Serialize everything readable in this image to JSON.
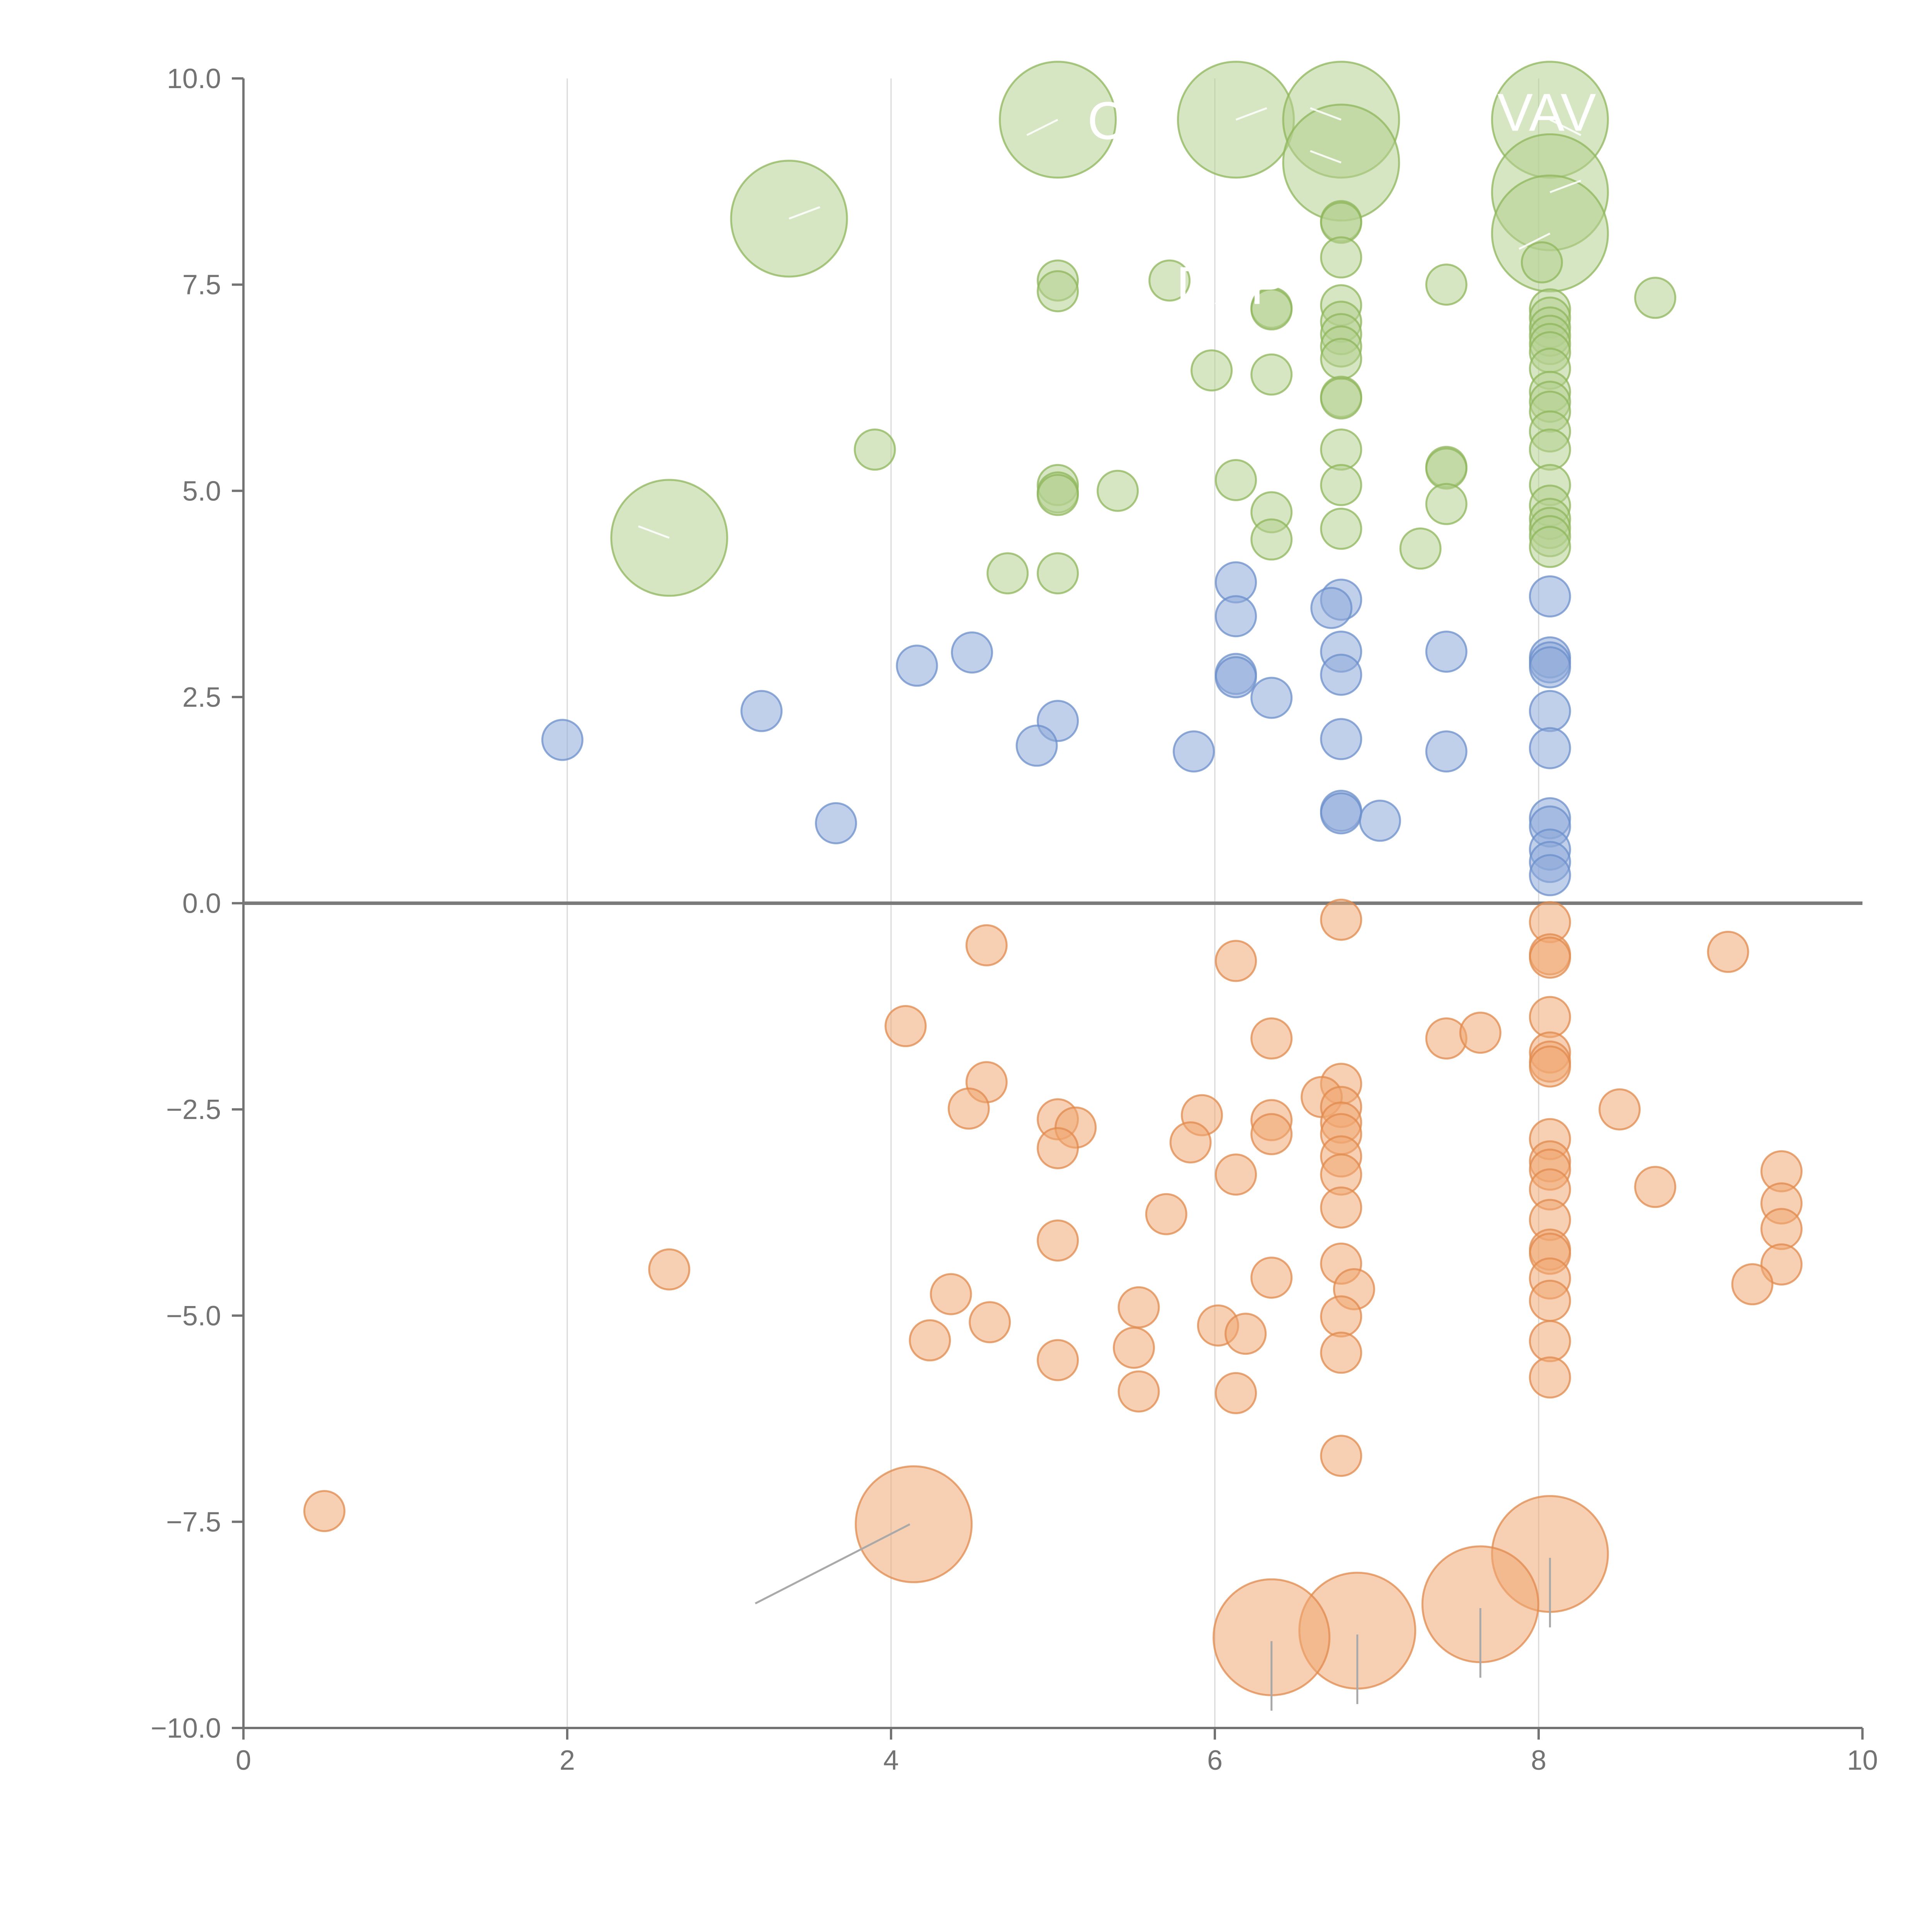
{
  "chart_data": {
    "type": "scatter",
    "title": "",
    "xlabel": "",
    "ylabel": "",
    "xlim": [
      0,
      10
    ],
    "ylim": [
      -10,
      10
    ],
    "x_ticks": [
      "0",
      "2",
      "4",
      "6",
      "8",
      "10"
    ],
    "y_ticks": [
      "10.0",
      "7.5",
      "5.0",
      "2.5",
      "0.0",
      "−2.5",
      "−5.0",
      "−7.5",
      "−10.0"
    ],
    "grid": "vertical",
    "colors": {
      "green_fill": "#b5d08f",
      "green_stroke": "#8db65a",
      "blue_fill": "#8eaad9",
      "blue_stroke": "#6b8fcb",
      "orange_fill": "#f0a872",
      "orange_stroke": "#e0894c"
    },
    "labels": [
      {
        "text": "CR",
        "x": 5.45,
        "y": 9.5
      },
      {
        "text": "VAV",
        "x": 8.05,
        "y": 9.6
      },
      {
        "text": "DAPT",
        "x": 6.2,
        "y": 7.5
      }
    ],
    "series": [
      {
        "name": "green",
        "color_key": "green",
        "points": [
          {
            "x": 5.03,
            "y": 9.5,
            "s": 3
          },
          {
            "x": 6.13,
            "y": 9.5,
            "s": 3
          },
          {
            "x": 6.78,
            "y": 9.5,
            "s": 3
          },
          {
            "x": 8.07,
            "y": 9.5,
            "s": 3
          },
          {
            "x": 6.78,
            "y": 8.98,
            "s": 3
          },
          {
            "x": 8.07,
            "y": 8.62,
            "s": 3
          },
          {
            "x": 8.07,
            "y": 8.12,
            "s": 3
          },
          {
            "x": 3.37,
            "y": 8.3,
            "s": 3
          },
          {
            "x": 2.63,
            "y": 4.43,
            "s": 3
          },
          {
            "x": 6.78,
            "y": 8.27,
            "s": 1
          },
          {
            "x": 6.78,
            "y": 8.25,
            "s": 1
          },
          {
            "x": 6.78,
            "y": 7.83,
            "s": 1
          },
          {
            "x": 8.02,
            "y": 7.77,
            "s": 1
          },
          {
            "x": 5.03,
            "y": 7.55,
            "s": 1
          },
          {
            "x": 5.03,
            "y": 7.42,
            "s": 1
          },
          {
            "x": 5.72,
            "y": 7.55,
            "s": 1
          },
          {
            "x": 7.43,
            "y": 7.5,
            "s": 1
          },
          {
            "x": 8.72,
            "y": 7.34,
            "s": 1
          },
          {
            "x": 6.35,
            "y": 7.22,
            "s": 1
          },
          {
            "x": 6.35,
            "y": 7.2,
            "s": 1
          },
          {
            "x": 6.78,
            "y": 7.25,
            "s": 1
          },
          {
            "x": 6.78,
            "y": 7.05,
            "s": 1
          },
          {
            "x": 6.78,
            "y": 6.9,
            "s": 1
          },
          {
            "x": 6.78,
            "y": 6.75,
            "s": 1
          },
          {
            "x": 6.78,
            "y": 6.6,
            "s": 1
          },
          {
            "x": 8.07,
            "y": 7.2,
            "s": 1
          },
          {
            "x": 8.07,
            "y": 7.1,
            "s": 1
          },
          {
            "x": 8.07,
            "y": 6.98,
            "s": 1
          },
          {
            "x": 8.07,
            "y": 6.88,
            "s": 1
          },
          {
            "x": 8.07,
            "y": 6.78,
            "s": 1
          },
          {
            "x": 8.07,
            "y": 6.68,
            "s": 1
          },
          {
            "x": 5.98,
            "y": 6.46,
            "s": 1
          },
          {
            "x": 6.35,
            "y": 6.41,
            "s": 1
          },
          {
            "x": 8.07,
            "y": 6.48,
            "s": 1
          },
          {
            "x": 6.78,
            "y": 6.14,
            "s": 1
          },
          {
            "x": 6.78,
            "y": 6.12,
            "s": 1
          },
          {
            "x": 8.07,
            "y": 6.2,
            "s": 1
          },
          {
            "x": 8.07,
            "y": 6.08,
            "s": 1
          },
          {
            "x": 8.07,
            "y": 5.96,
            "s": 1
          },
          {
            "x": 8.07,
            "y": 5.72,
            "s": 1
          },
          {
            "x": 8.07,
            "y": 5.5,
            "s": 1
          },
          {
            "x": 3.9,
            "y": 5.5,
            "s": 1
          },
          {
            "x": 6.78,
            "y": 5.5,
            "s": 1
          },
          {
            "x": 7.43,
            "y": 5.29,
            "s": 1
          },
          {
            "x": 7.43,
            "y": 5.27,
            "s": 1
          },
          {
            "x": 6.13,
            "y": 5.13,
            "s": 1
          },
          {
            "x": 6.78,
            "y": 5.07,
            "s": 1
          },
          {
            "x": 8.07,
            "y": 5.07,
            "s": 1
          },
          {
            "x": 5.03,
            "y": 5.07,
            "s": 1
          },
          {
            "x": 5.03,
            "y": 4.98,
            "s": 1
          },
          {
            "x": 5.03,
            "y": 4.95,
            "s": 1
          },
          {
            "x": 5.4,
            "y": 5.0,
            "s": 1
          },
          {
            "x": 7.43,
            "y": 4.84,
            "s": 1
          },
          {
            "x": 8.07,
            "y": 4.82,
            "s": 1
          },
          {
            "x": 6.35,
            "y": 4.74,
            "s": 1
          },
          {
            "x": 8.07,
            "y": 4.66,
            "s": 1
          },
          {
            "x": 8.07,
            "y": 4.55,
            "s": 1
          },
          {
            "x": 8.07,
            "y": 4.45,
            "s": 1
          },
          {
            "x": 6.78,
            "y": 4.54,
            "s": 1
          },
          {
            "x": 6.35,
            "y": 4.41,
            "s": 1
          },
          {
            "x": 8.07,
            "y": 4.32,
            "s": 1
          },
          {
            "x": 7.27,
            "y": 4.3,
            "s": 1
          },
          {
            "x": 4.72,
            "y": 4.0,
            "s": 1
          },
          {
            "x": 5.03,
            "y": 4.0,
            "s": 1
          }
        ]
      },
      {
        "name": "blue",
        "color_key": "blue",
        "points": [
          {
            "x": 6.13,
            "y": 3.89,
            "s": 1
          },
          {
            "x": 6.78,
            "y": 3.68,
            "s": 1
          },
          {
            "x": 8.07,
            "y": 3.72,
            "s": 1
          },
          {
            "x": 6.72,
            "y": 3.58,
            "s": 1
          },
          {
            "x": 6.13,
            "y": 3.48,
            "s": 1
          },
          {
            "x": 4.5,
            "y": 3.04,
            "s": 1
          },
          {
            "x": 6.78,
            "y": 3.05,
            "s": 1
          },
          {
            "x": 7.43,
            "y": 3.05,
            "s": 1
          },
          {
            "x": 8.07,
            "y": 2.98,
            "s": 1
          },
          {
            "x": 8.07,
            "y": 2.92,
            "s": 1
          },
          {
            "x": 8.07,
            "y": 2.86,
            "s": 1
          },
          {
            "x": 4.16,
            "y": 2.88,
            "s": 1
          },
          {
            "x": 6.78,
            "y": 2.77,
            "s": 1
          },
          {
            "x": 6.13,
            "y": 2.78,
            "s": 1
          },
          {
            "x": 6.13,
            "y": 2.74,
            "s": 1
          },
          {
            "x": 6.35,
            "y": 2.49,
            "s": 1
          },
          {
            "x": 3.2,
            "y": 2.33,
            "s": 1
          },
          {
            "x": 8.07,
            "y": 2.33,
            "s": 1
          },
          {
            "x": 5.03,
            "y": 2.21,
            "s": 1
          },
          {
            "x": 1.97,
            "y": 1.98,
            "s": 1
          },
          {
            "x": 6.78,
            "y": 1.99,
            "s": 1
          },
          {
            "x": 4.9,
            "y": 1.91,
            "s": 1
          },
          {
            "x": 5.87,
            "y": 1.84,
            "s": 1
          },
          {
            "x": 7.43,
            "y": 1.84,
            "s": 1
          },
          {
            "x": 8.07,
            "y": 1.88,
            "s": 1
          },
          {
            "x": 6.78,
            "y": 1.12,
            "s": 1
          },
          {
            "x": 6.78,
            "y": 1.09,
            "s": 1
          },
          {
            "x": 8.07,
            "y": 1.03,
            "s": 1
          },
          {
            "x": 8.07,
            "y": 0.93,
            "s": 1
          },
          {
            "x": 7.02,
            "y": 1.0,
            "s": 1
          },
          {
            "x": 3.66,
            "y": 0.97,
            "s": 1
          },
          {
            "x": 8.07,
            "y": 0.65,
            "s": 1
          },
          {
            "x": 8.07,
            "y": 0.5,
            "s": 1
          },
          {
            "x": 8.07,
            "y": 0.34,
            "s": 1
          }
        ]
      },
      {
        "name": "orange",
        "color_key": "orange",
        "points": [
          {
            "x": 6.78,
            "y": -0.2,
            "s": 1
          },
          {
            "x": 8.07,
            "y": -0.23,
            "s": 1
          },
          {
            "x": 4.59,
            "y": -0.51,
            "s": 1
          },
          {
            "x": 9.17,
            "y": -0.59,
            "s": 1
          },
          {
            "x": 8.07,
            "y": -0.62,
            "s": 1
          },
          {
            "x": 8.07,
            "y": -0.66,
            "s": 1
          },
          {
            "x": 6.13,
            "y": -0.7,
            "s": 1
          },
          {
            "x": 4.09,
            "y": -1.49,
            "s": 1
          },
          {
            "x": 8.07,
            "y": -1.38,
            "s": 1
          },
          {
            "x": 6.35,
            "y": -1.64,
            "s": 1
          },
          {
            "x": 7.43,
            "y": -1.64,
            "s": 1
          },
          {
            "x": 7.64,
            "y": -1.57,
            "s": 1
          },
          {
            "x": 8.07,
            "y": -1.81,
            "s": 1
          },
          {
            "x": 8.07,
            "y": -1.92,
            "s": 1
          },
          {
            "x": 8.07,
            "y": -1.98,
            "s": 1
          },
          {
            "x": 4.59,
            "y": -2.17,
            "s": 1
          },
          {
            "x": 6.78,
            "y": -2.19,
            "s": 1
          },
          {
            "x": 6.66,
            "y": -2.35,
            "s": 1
          },
          {
            "x": 4.48,
            "y": -2.49,
            "s": 1
          },
          {
            "x": 6.78,
            "y": -2.47,
            "s": 1
          },
          {
            "x": 8.5,
            "y": -2.5,
            "s": 1
          },
          {
            "x": 5.92,
            "y": -2.57,
            "s": 1
          },
          {
            "x": 5.03,
            "y": -2.62,
            "s": 1
          },
          {
            "x": 6.35,
            "y": -2.63,
            "s": 1
          },
          {
            "x": 6.78,
            "y": -2.66,
            "s": 1
          },
          {
            "x": 5.14,
            "y": -2.72,
            "s": 1
          },
          {
            "x": 6.35,
            "y": -2.8,
            "s": 1
          },
          {
            "x": 6.78,
            "y": -2.8,
            "s": 1
          },
          {
            "x": 8.07,
            "y": -2.86,
            "s": 1
          },
          {
            "x": 5.85,
            "y": -2.9,
            "s": 1
          },
          {
            "x": 5.03,
            "y": -2.97,
            "s": 1
          },
          {
            "x": 6.78,
            "y": -3.07,
            "s": 1
          },
          {
            "x": 8.07,
            "y": -3.13,
            "s": 1
          },
          {
            "x": 8.07,
            "y": -3.23,
            "s": 1
          },
          {
            "x": 9.5,
            "y": -3.25,
            "s": 1
          },
          {
            "x": 6.13,
            "y": -3.29,
            "s": 1
          },
          {
            "x": 6.78,
            "y": -3.29,
            "s": 1
          },
          {
            "x": 8.72,
            "y": -3.44,
            "s": 1
          },
          {
            "x": 8.07,
            "y": -3.47,
            "s": 1
          },
          {
            "x": 9.5,
            "y": -3.64,
            "s": 1
          },
          {
            "x": 6.78,
            "y": -3.69,
            "s": 1
          },
          {
            "x": 5.7,
            "y": -3.77,
            "s": 1
          },
          {
            "x": 8.07,
            "y": -3.84,
            "s": 1
          },
          {
            "x": 9.5,
            "y": -3.95,
            "s": 1
          },
          {
            "x": 5.03,
            "y": -4.09,
            "s": 1
          },
          {
            "x": 8.07,
            "y": -4.2,
            "s": 1
          },
          {
            "x": 8.07,
            "y": -4.25,
            "s": 1
          },
          {
            "x": 6.78,
            "y": -4.37,
            "s": 1
          },
          {
            "x": 9.5,
            "y": -4.38,
            "s": 1
          },
          {
            "x": 2.63,
            "y": -4.44,
            "s": 1
          },
          {
            "x": 6.35,
            "y": -4.54,
            "s": 1
          },
          {
            "x": 8.07,
            "y": -4.55,
            "s": 1
          },
          {
            "x": 9.32,
            "y": -4.62,
            "s": 1
          },
          {
            "x": 6.86,
            "y": -4.68,
            "s": 1
          },
          {
            "x": 4.37,
            "y": -4.74,
            "s": 1
          },
          {
            "x": 8.07,
            "y": -4.82,
            "s": 1
          },
          {
            "x": 5.53,
            "y": -4.9,
            "s": 1
          },
          {
            "x": 6.78,
            "y": -5.01,
            "s": 1
          },
          {
            "x": 4.61,
            "y": -5.08,
            "s": 1
          },
          {
            "x": 6.02,
            "y": -5.12,
            "s": 1
          },
          {
            "x": 6.19,
            "y": -5.22,
            "s": 1
          },
          {
            "x": 4.24,
            "y": -5.3,
            "s": 1
          },
          {
            "x": 8.07,
            "y": -5.31,
            "s": 1
          },
          {
            "x": 5.5,
            "y": -5.39,
            "s": 1
          },
          {
            "x": 6.78,
            "y": -5.45,
            "s": 1
          },
          {
            "x": 5.03,
            "y": -5.54,
            "s": 1
          },
          {
            "x": 8.07,
            "y": -5.75,
            "s": 1
          },
          {
            "x": 5.53,
            "y": -5.92,
            "s": 1
          },
          {
            "x": 6.13,
            "y": -5.94,
            "s": 1
          },
          {
            "x": 6.78,
            "y": -6.7,
            "s": 1
          },
          {
            "x": 0.5,
            "y": -7.37,
            "s": 1
          },
          {
            "x": 4.14,
            "y": -7.53,
            "s": 3
          },
          {
            "x": 8.07,
            "y": -7.89,
            "s": 3
          },
          {
            "x": 7.64,
            "y": -8.5,
            "s": 3
          },
          {
            "x": 6.88,
            "y": -8.82,
            "s": 3
          },
          {
            "x": 6.35,
            "y": -8.9,
            "s": 3
          }
        ]
      }
    ]
  }
}
